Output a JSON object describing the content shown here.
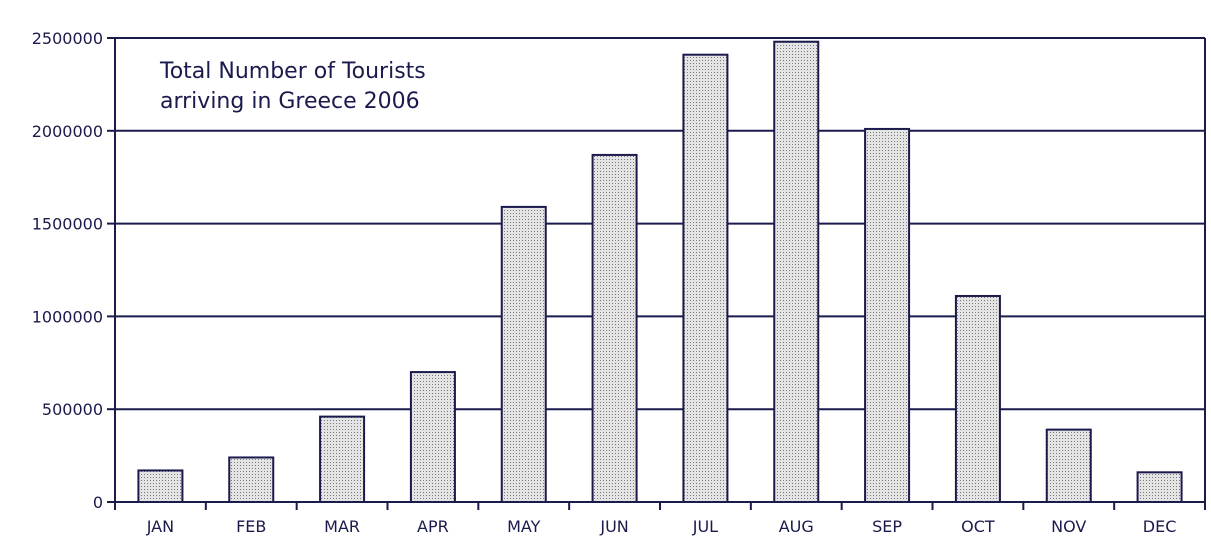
{
  "chart_data": {
    "type": "bar",
    "title_lines": [
      "Total Number of Tourists",
      "arriving in Greece 2006"
    ],
    "xlabel": "",
    "ylabel": "",
    "categories": [
      "JAN",
      "FEB",
      "MAR",
      "APR",
      "MAY",
      "JUN",
      "JUL",
      "AUG",
      "SEP",
      "OCT",
      "NOV",
      "DEC"
    ],
    "values": [
      170000,
      240000,
      460000,
      700000,
      1590000,
      1870000,
      2410000,
      2480000,
      2010000,
      1110000,
      390000,
      160000
    ],
    "ylim": [
      0,
      2500000
    ],
    "yticks": [
      0,
      500000,
      1000000,
      1500000,
      2000000,
      2500000
    ],
    "ytick_labels": [
      "0",
      "500000",
      "1000000",
      "1500000",
      "2000000",
      "2500000"
    ],
    "grid": true,
    "legend": "none",
    "colors": {
      "axis": "#1a1a4d",
      "bar_fill": "#e0e0e0",
      "bar_dot": "#7a7a7a",
      "text": "#1a1a4d"
    }
  }
}
